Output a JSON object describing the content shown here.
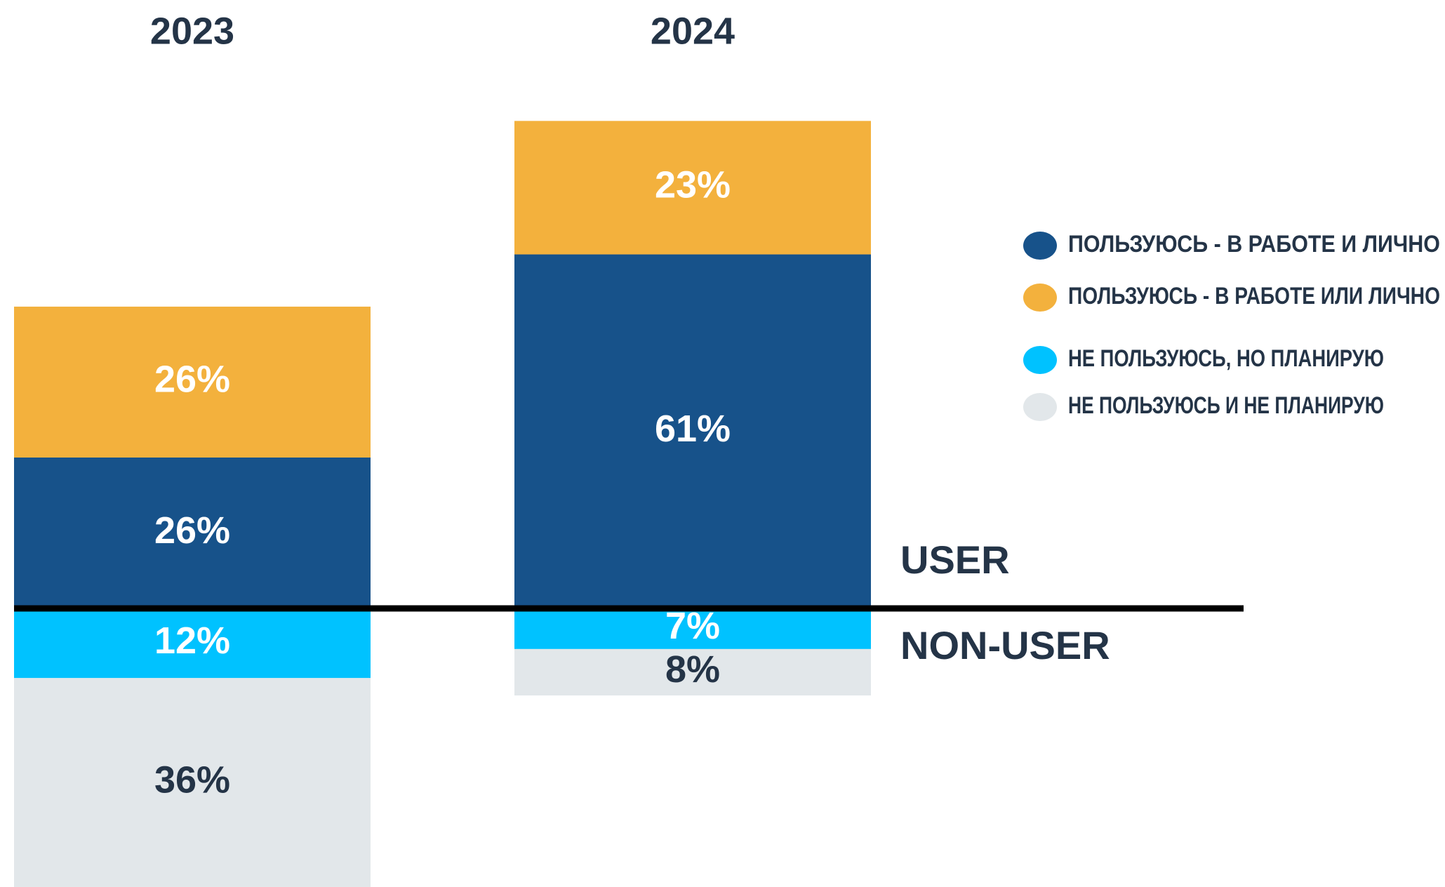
{
  "chart_data": {
    "type": "stacked_bar",
    "categories": [
      "2023",
      "2024"
    ],
    "series": [
      {
        "name": "ПОЛЬЗУЮСЬ - В РАБОТЕ И ЛИЧНО",
        "color": "#17528a",
        "label_color": "#ffffff",
        "values": [
          26,
          61
        ],
        "value_labels": [
          "26%",
          "61%"
        ]
      },
      {
        "name": "ПОЛЬЗУЮСЬ - В РАБОТЕ ИЛИ ЛИЧНО",
        "color": "#f3b13d",
        "label_color": "#ffffff",
        "values": [
          26,
          23
        ],
        "value_labels": [
          "26%",
          "23%"
        ]
      },
      {
        "name": "НЕ ПОЛЬЗУЮСЬ, НО ПЛАНИРУЮ",
        "color": "#00c2ff",
        "label_color": "#ffffff",
        "values": [
          12,
          7
        ],
        "value_labels": [
          "12%",
          "7%"
        ]
      },
      {
        "name": "НЕ ПОЛЬЗУЮСЬ И НЕ ПЛАНИРУЮ",
        "color": "#e2e7ea",
        "label_color": "#243447",
        "values": [
          36,
          8
        ],
        "value_labels": [
          "36%",
          "8%"
        ]
      }
    ],
    "annotations": [
      "USER",
      "NON-USER"
    ],
    "legend": "right"
  }
}
